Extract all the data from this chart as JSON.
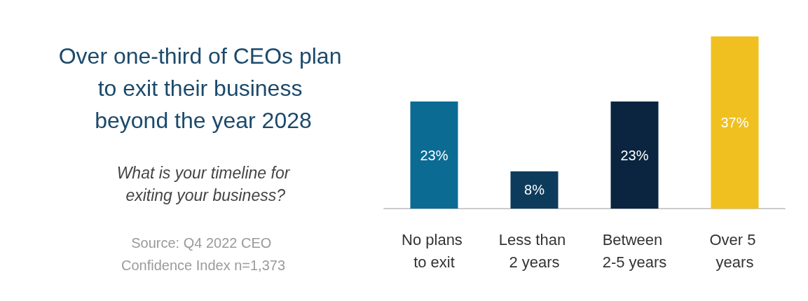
{
  "chart_data": {
    "type": "bar",
    "title": "Over one-third of CEOs plan to exit their business beyond the year 2028",
    "subtitle": "What is your timeline for exiting your business?",
    "annotations": [
      "Source: Q4 2022 CEO Confidence Index n=1,373"
    ],
    "categories": [
      "No plans to exit",
      "Less than 2 years",
      "Between 2-5 years",
      "Over 5 years"
    ],
    "values": [
      23,
      8,
      23,
      37
    ],
    "colors": [
      "#0b6b93",
      "#0d3b5c",
      "#0b2540",
      "#f0c020"
    ],
    "value_labels": [
      "23%",
      "8%",
      "23%",
      "37%"
    ],
    "grid": false
  }
}
